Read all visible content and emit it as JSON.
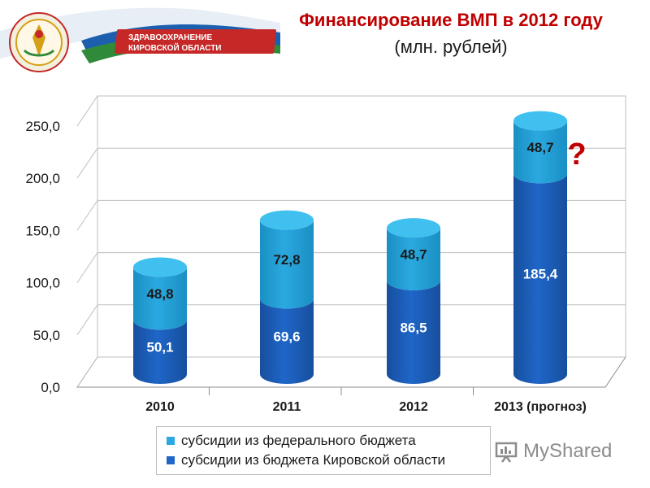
{
  "header": {
    "title_main": "Финансирование ВМП в 2012 году",
    "title_sub": "(млн. рублей)",
    "logo_text_line1": "ЗДРАВООХРАНЕНИЕ",
    "logo_text_line2": "КИРОВСКОЙ ОБЛАСТИ"
  },
  "chart_data": {
    "type": "bar",
    "stacked": true,
    "categories": [
      "2010",
      "2011",
      "2012",
      "2013 (прогноз)"
    ],
    "series": [
      {
        "name": "субсидии из бюджета Кировской области",
        "values": [
          50.1,
          69.6,
          86.5,
          185.4
        ],
        "color": "#1f66c8",
        "labels": [
          "50,1",
          "69,6",
          "86,5",
          "185,4"
        ]
      },
      {
        "name": "субсидии из федерального бюджета",
        "values": [
          48.8,
          72.8,
          48.7,
          48.7
        ],
        "color": "#2aa9e0",
        "labels": [
          "48,8",
          "72,8",
          "48,7",
          "48,7"
        ]
      }
    ],
    "y_ticks": [
      "0,0",
      "50,0",
      "100,0",
      "150,0",
      "200,0",
      "250,0"
    ],
    "ylim": [
      0,
      250
    ],
    "grid": true,
    "annotation": "?",
    "legend_position": "bottom"
  },
  "legend": [
    {
      "label": "субсидии из федерального бюджета",
      "color": "#2aa9e0"
    },
    {
      "label": "субсидии из бюджета Кировской области",
      "color": "#1f66c8"
    }
  ],
  "watermark": "MyShared"
}
